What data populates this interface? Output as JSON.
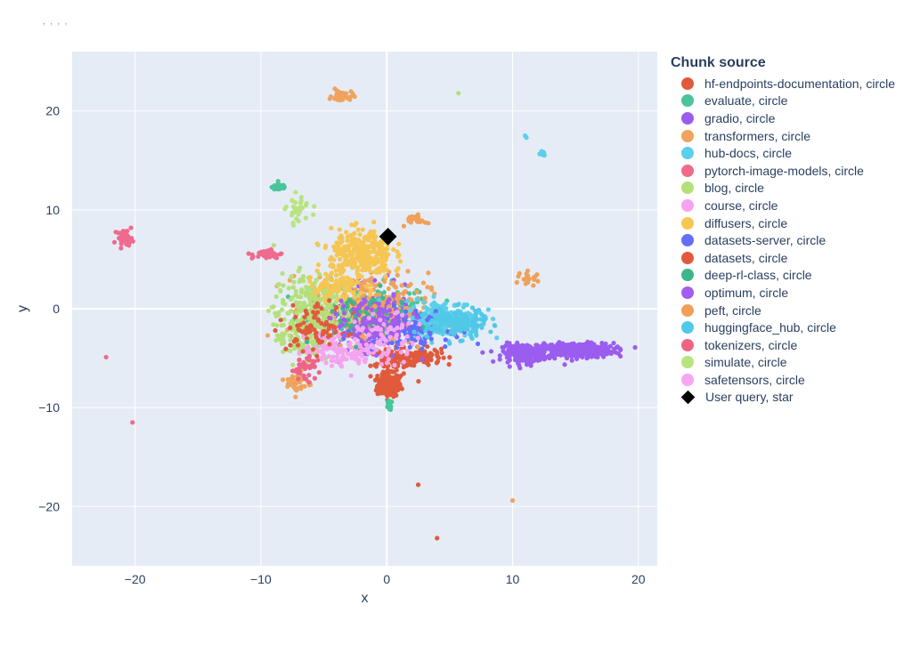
{
  "chart_data": {
    "type": "scatter",
    "title": "",
    "xlabel": "x",
    "ylabel": "y",
    "xlim": [
      -25,
      21.5
    ],
    "ylim": [
      -26,
      26
    ],
    "grid": true,
    "x_ticks": [
      -20,
      -10,
      0,
      10,
      20
    ],
    "y_ticks": [
      -20,
      -10,
      0,
      10,
      20
    ],
    "x_tick_labels": [
      "−20",
      "−10",
      "0",
      "10",
      "20"
    ],
    "y_tick_labels": [
      "−20",
      "−10",
      "0",
      "10",
      "20"
    ],
    "legend_title": "Chunk source",
    "legend_position": "right",
    "series": [
      {
        "name": "hf-endpoints-documentation, circle",
        "color": "#e05a3c",
        "marker": "circle",
        "clusters": [
          [
            0.2,
            -7.8,
            0.8,
            0.9,
            160
          ],
          [
            2.5,
            -4.8,
            1.5,
            0.7,
            90
          ],
          [
            0.5,
            -5.5,
            1.5,
            1.2,
            80
          ]
        ],
        "points": [
          [
            2.5,
            -17.8
          ]
        ]
      },
      {
        "name": "evaluate, circle",
        "color": "#4bc49a",
        "marker": "circle",
        "clusters": [
          [
            -8.5,
            12.3,
            0.5,
            0.3,
            40
          ],
          [
            0.2,
            -9.8,
            0.2,
            0.4,
            20
          ],
          [
            -1,
            0,
            4,
            2,
            120
          ]
        ],
        "points": []
      },
      {
        "name": "gradio, circle",
        "color": "#9b5cf0",
        "marker": "circle",
        "clusters": [
          [
            15,
            -4.2,
            2.5,
            0.6,
            400
          ],
          [
            11,
            -4.5,
            1.5,
            0.8,
            180
          ],
          [
            -1.5,
            -1,
            3,
            2.5,
            250
          ]
        ],
        "points": []
      },
      {
        "name": "transformers, circle",
        "color": "#f0a35e",
        "marker": "circle",
        "clusters": [
          [
            -3.5,
            21.5,
            0.7,
            0.5,
            40
          ],
          [
            -1.5,
            0,
            4,
            3,
            280
          ],
          [
            -7,
            -7.5,
            0.8,
            1,
            40
          ]
        ],
        "points": [
          [
            10,
            -19.4
          ]
        ]
      },
      {
        "name": "hub-docs, circle",
        "color": "#5ad0ea",
        "marker": "circle",
        "clusters": [
          [
            12.3,
            15.7,
            0.3,
            0.3,
            12
          ],
          [
            4.5,
            -1,
            2.5,
            1.5,
            260
          ]
        ],
        "points": [
          [
            11,
            17.5
          ],
          [
            11.1,
            17.3
          ]
        ]
      },
      {
        "name": "pytorch-image-models, circle",
        "color": "#ef6a8c",
        "marker": "circle",
        "clusters": [
          [
            -20.8,
            7.2,
            0.5,
            0.6,
            45
          ],
          [
            -9.5,
            5.5,
            1,
            0.4,
            40
          ]
        ],
        "points": [
          [
            -22.3,
            -4.9
          ],
          [
            -20.2,
            -11.5
          ]
        ]
      },
      {
        "name": "blog, circle",
        "color": "#b4e07a",
        "marker": "circle",
        "clusters": [
          [
            -6,
            0,
            2.5,
            3,
            260
          ],
          [
            -7,
            -3,
            1.5,
            2,
            80
          ]
        ],
        "points": [
          [
            5.7,
            21.8
          ]
        ]
      },
      {
        "name": "course, circle",
        "color": "#f5a3f0",
        "marker": "circle",
        "clusters": [
          [
            -3,
            -4,
            3,
            1.5,
            140
          ]
        ],
        "points": []
      },
      {
        "name": "diffusers, circle",
        "color": "#f6c653",
        "marker": "circle",
        "clusters": [
          [
            -2,
            5.5,
            2,
            2,
            320
          ],
          [
            -4,
            2,
            2,
            1.5,
            80
          ]
        ],
        "points": []
      },
      {
        "name": "datasets-server, circle",
        "color": "#636efa",
        "marker": "circle",
        "clusters": [
          [
            1.5,
            -2,
            3,
            1.5,
            120
          ]
        ],
        "points": []
      },
      {
        "name": "datasets, circle",
        "color": "#e15a3d",
        "marker": "circle",
        "clusters": [
          [
            -5.5,
            -2,
            2,
            2,
            80
          ]
        ],
        "points": [
          [
            4,
            -23.2
          ]
        ]
      },
      {
        "name": "deep-rl-class, circle",
        "color": "#3fb58b",
        "marker": "circle",
        "clusters": [
          [
            -2,
            -1,
            3,
            2,
            60
          ]
        ],
        "points": []
      },
      {
        "name": "optimum, circle",
        "color": "#a15cf0",
        "marker": "circle",
        "clusters": [
          [
            -1,
            -1.5,
            2.5,
            2,
            100
          ]
        ],
        "points": []
      },
      {
        "name": "peft, circle",
        "color": "#f0a058",
        "marker": "circle",
        "clusters": [
          [
            2.3,
            9,
            0.7,
            0.4,
            25
          ],
          [
            11.5,
            3,
            0.7,
            0.6,
            20
          ]
        ],
        "points": []
      },
      {
        "name": "huggingface_hub, circle",
        "color": "#52c8e8",
        "marker": "circle",
        "clusters": [
          [
            5.5,
            -1.5,
            2,
            1.2,
            160
          ]
        ],
        "points": []
      },
      {
        "name": "tokenizers, circle",
        "color": "#ee6487",
        "marker": "circle",
        "clusters": [
          [
            -6.5,
            -6,
            1,
            1,
            40
          ]
        ],
        "points": []
      },
      {
        "name": "simulate, circle",
        "color": "#b8e480",
        "marker": "circle",
        "clusters": [
          [
            -7,
            10,
            0.8,
            1.2,
            30
          ]
        ],
        "points": []
      },
      {
        "name": "safetensors, circle",
        "color": "#f6a6f4",
        "marker": "circle",
        "clusters": [
          [
            0,
            -3,
            2,
            2,
            60
          ]
        ],
        "points": []
      },
      {
        "name": "User query, star",
        "color": "#000000",
        "marker": "diamond",
        "clusters": [],
        "points": [
          [
            0.1,
            7.3
          ]
        ]
      }
    ]
  }
}
